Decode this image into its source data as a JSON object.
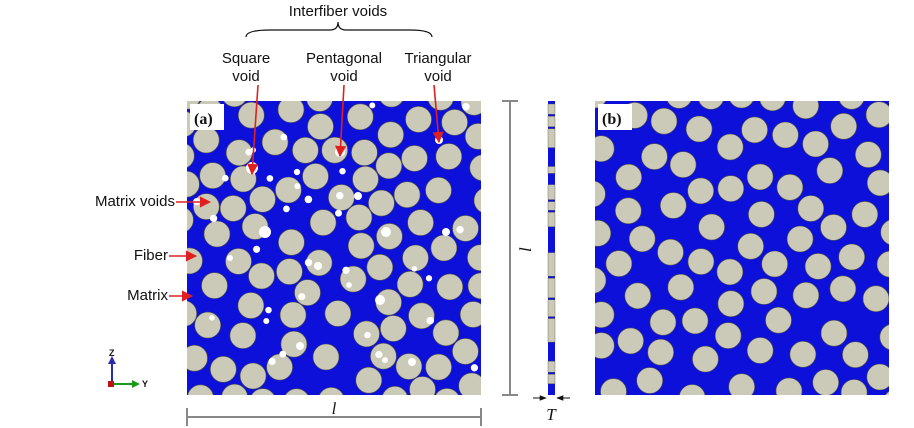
{
  "annotations": {
    "interfiber_voids": "Interfiber voids",
    "square_void_line1": "Square",
    "square_void_line2": "void",
    "pentagonal_void_line1": "Pentagonal",
    "pentagonal_void_line2": "void",
    "triangular_void_line1": "Triangular",
    "triangular_void_line2": "void",
    "matrix_voids": "Matrix voids",
    "fiber": "Fiber",
    "matrix": "Matrix"
  },
  "panels": {
    "a_label": "(a)",
    "b_label": "(b)"
  },
  "dimensions": {
    "length_symbol": "l",
    "thickness_symbol": "T"
  },
  "axes_triad": {
    "z_label": "Z",
    "y_label": "Y"
  },
  "colors": {
    "matrix": "#0c10d8",
    "fiber": "#cbc9b8",
    "fiber_stroke": "#55554a",
    "void": "#ffffff",
    "arrow": "#e02020",
    "axis_z": "#2a2ab0",
    "axis_y": "#1a9a1a",
    "axis_x": "#c01010"
  },
  "icons": {
    "arrow": "red-arrow-icon",
    "triad": "axis-triad-icon"
  }
}
